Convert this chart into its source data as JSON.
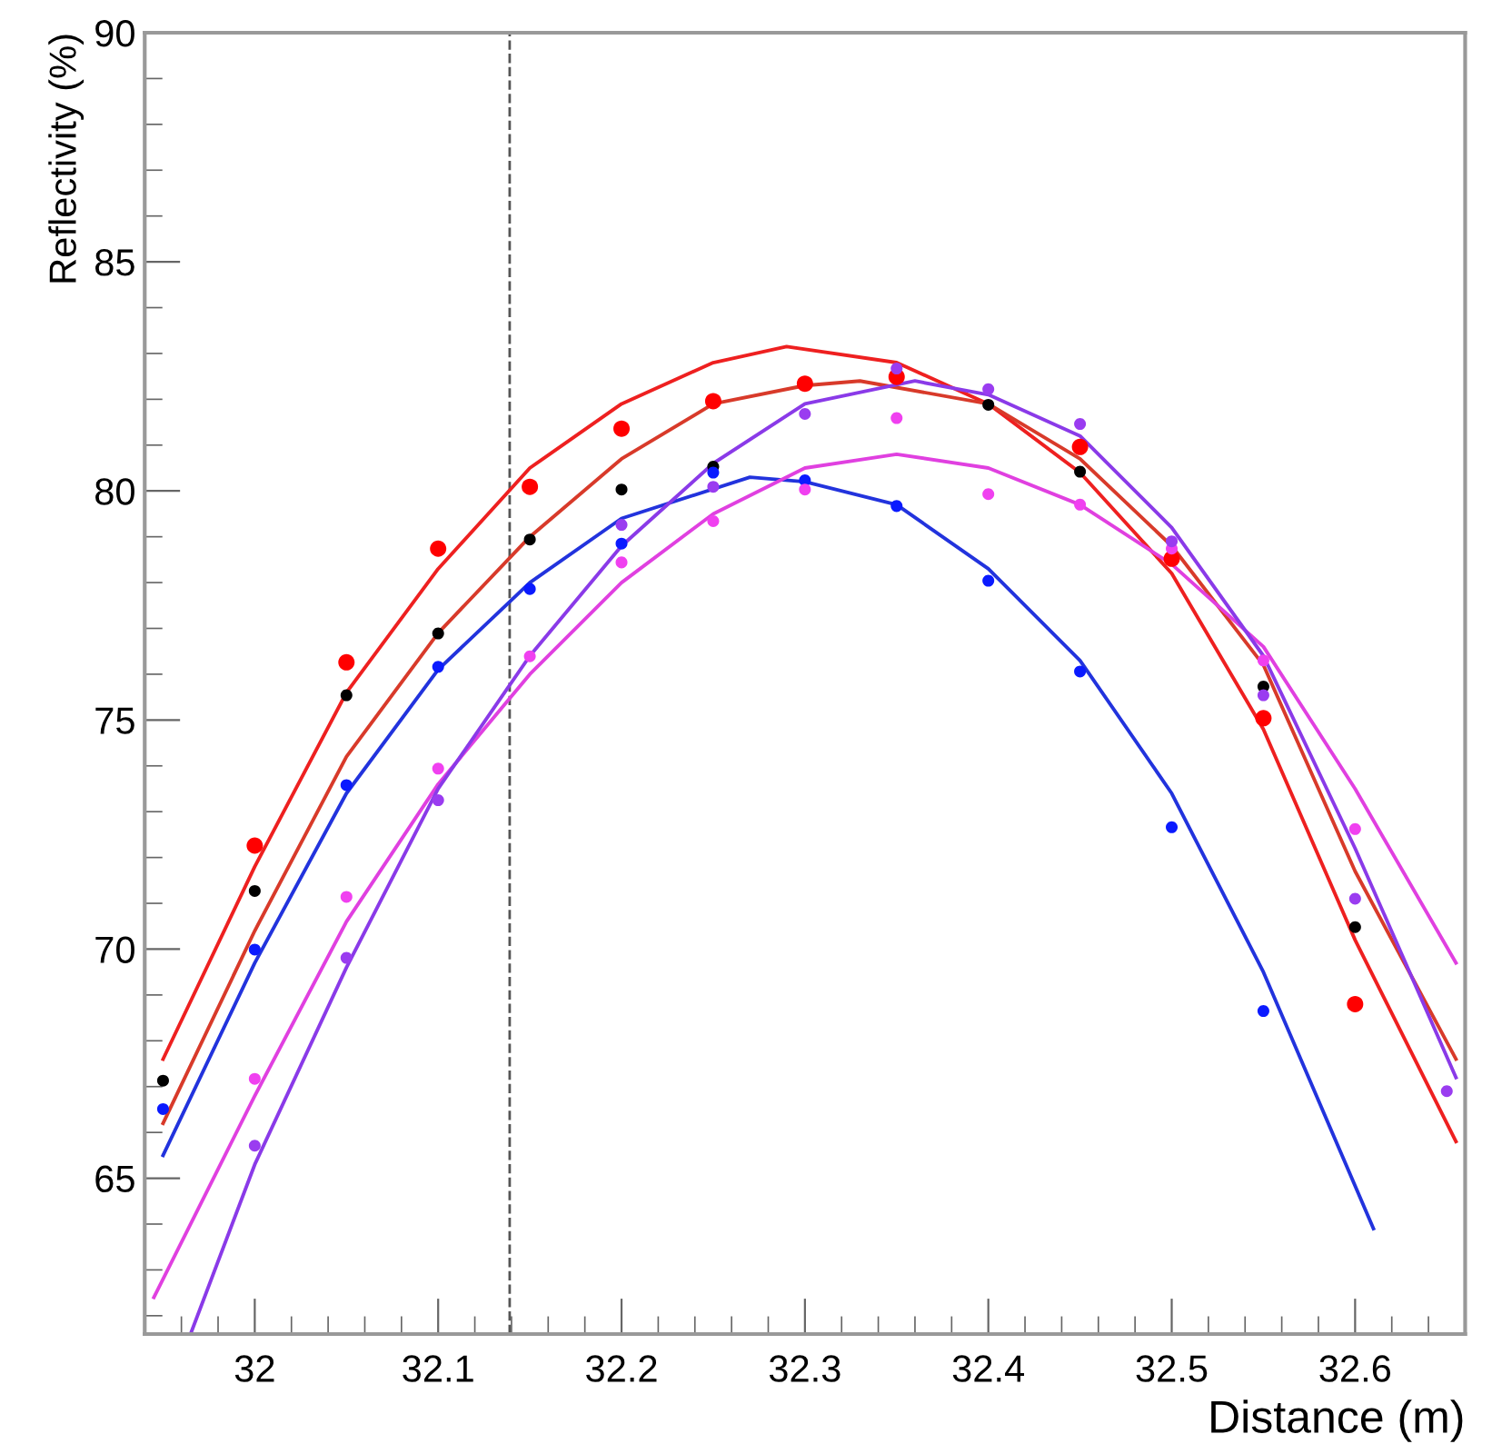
{
  "chart_data": {
    "type": "scatter",
    "xlabel": "Distance (m)",
    "ylabel": "Reflectivity (%)",
    "x": [
      31.95,
      32.0,
      32.05,
      32.1,
      32.15,
      32.2,
      32.25,
      32.3,
      32.35,
      32.4,
      32.45,
      32.5,
      32.55,
      32.6,
      32.65
    ],
    "series": [
      {
        "color": "#ff0000",
        "values": [
          null,
          72.26,
          76.26,
          78.74,
          80.09,
          81.36,
          81.96,
          82.34,
          82.49,
          null,
          80.96,
          78.52,
          75.04,
          68.8,
          null
        ]
      },
      {
        "color": "#000000",
        "values": [
          67.13,
          71.27,
          75.54,
          76.89,
          78.94,
          80.03,
          80.53,
          null,
          null,
          81.88,
          80.42,
          null,
          75.73,
          70.48,
          null
        ]
      },
      {
        "color": "#0a1aff",
        "values": [
          66.51,
          69.99,
          73.58,
          76.16,
          77.86,
          78.85,
          80.4,
          80.23,
          79.67,
          78.04,
          76.06,
          72.66,
          68.65,
          null,
          null
        ]
      },
      {
        "color": "#f040f0",
        "values": [
          null,
          67.17,
          71.14,
          73.94,
          76.39,
          78.44,
          79.34,
          80.03,
          81.59,
          79.93,
          79.7,
          78.74,
          76.3,
          72.62,
          null
        ]
      },
      {
        "color": "#9a3cf0",
        "values": [
          null,
          65.71,
          69.81,
          73.25,
          null,
          79.26,
          80.09,
          81.68,
          82.67,
          82.22,
          81.46,
          78.9,
          75.54,
          71.1,
          66.9
        ]
      },
      {
        "type": "line",
        "marker": "none",
        "color": "#ee2020",
        "x": [
          31.95,
          32.0,
          32.05,
          32.1,
          32.15,
          32.2,
          32.25,
          32.29,
          32.35,
          32.4,
          32.45,
          32.5,
          32.55,
          32.6,
          32.655
        ],
        "values": [
          67.6,
          71.8,
          75.6,
          78.3,
          80.5,
          81.9,
          82.8,
          83.15,
          82.8,
          81.9,
          80.4,
          78.2,
          74.8,
          70.2,
          65.8
        ]
      },
      {
        "type": "line",
        "marker": "none",
        "color": "#d83a2a",
        "x": [
          31.95,
          32.0,
          32.05,
          32.1,
          32.15,
          32.2,
          32.25,
          32.3,
          32.33,
          32.4,
          32.45,
          32.5,
          32.55,
          32.6,
          32.655
        ],
        "values": [
          66.2,
          70.4,
          74.2,
          76.9,
          79.0,
          80.7,
          81.9,
          82.3,
          82.4,
          81.9,
          80.7,
          78.8,
          76.2,
          71.7,
          67.6
        ]
      },
      {
        "type": "line",
        "marker": "none",
        "color": "#2233dd",
        "x": [
          31.95,
          32.0,
          32.05,
          32.1,
          32.15,
          32.2,
          32.27,
          32.3,
          32.35,
          32.4,
          32.45,
          32.5,
          32.55,
          32.61
        ],
        "values": [
          65.5,
          69.7,
          73.4,
          76.1,
          78.0,
          79.4,
          80.3,
          80.2,
          79.7,
          78.3,
          76.3,
          73.4,
          69.5,
          63.9
        ]
      },
      {
        "type": "line",
        "marker": "none",
        "color": "#e040e0",
        "x": [
          31.945,
          32.0,
          32.05,
          32.1,
          32.15,
          32.2,
          32.25,
          32.3,
          32.35,
          32.4,
          32.45,
          32.5,
          32.55,
          32.6,
          32.655
        ],
        "values": [
          62.4,
          66.8,
          70.6,
          73.6,
          76.0,
          78.0,
          79.5,
          80.5,
          80.8,
          80.5,
          79.7,
          78.4,
          76.6,
          73.5,
          69.7
        ]
      },
      {
        "type": "line",
        "marker": "none",
        "color": "#8a3ae8",
        "x": [
          31.965,
          32.0,
          32.05,
          32.1,
          32.15,
          32.2,
          32.25,
          32.3,
          32.36,
          32.4,
          32.45,
          32.5,
          32.55,
          32.6,
          32.655
        ],
        "values": [
          61.6,
          65.3,
          69.6,
          73.5,
          76.4,
          78.8,
          80.6,
          81.9,
          82.4,
          82.1,
          81.2,
          79.2,
          76.4,
          72.2,
          67.2
        ]
      }
    ],
    "marker": "circle",
    "grid": false,
    "legend": false,
    "xlim": [
      31.94,
      32.66
    ],
    "ylim": [
      61.6,
      90
    ],
    "xticks": [
      {
        "value": 31.94,
        "label": null
      },
      {
        "value": 31.96,
        "label": null
      },
      {
        "value": 31.98,
        "label": null
      },
      32,
      {
        "value": 32.02,
        "label": null
      },
      {
        "value": 32.04,
        "label": null
      },
      {
        "value": 32.06,
        "label": null
      },
      {
        "value": 32.08,
        "label": null
      },
      32.1,
      {
        "value": 32.12,
        "label": null
      },
      {
        "value": 32.14,
        "label": null
      },
      {
        "value": 32.16,
        "label": null
      },
      {
        "value": 32.18,
        "label": null
      },
      32.2,
      {
        "value": 32.22,
        "label": null
      },
      {
        "value": 32.24,
        "label": null
      },
      {
        "value": 32.26,
        "label": null
      },
      {
        "value": 32.28,
        "label": null
      },
      32.3,
      {
        "value": 32.32,
        "label": null
      },
      {
        "value": 32.34,
        "label": null
      },
      {
        "value": 32.36,
        "label": null
      },
      {
        "value": 32.38,
        "label": null
      },
      32.4,
      {
        "value": 32.42,
        "label": null
      },
      {
        "value": 32.44,
        "label": null
      },
      {
        "value": 32.46,
        "label": null
      },
      {
        "value": 32.48,
        "label": null
      },
      32.5,
      {
        "value": 32.52,
        "label": null
      },
      {
        "value": 32.54,
        "label": null
      },
      {
        "value": 32.56,
        "label": null
      },
      {
        "value": 32.58,
        "label": null
      },
      32.6,
      {
        "value": 32.62,
        "label": null
      },
      {
        "value": 32.64,
        "label": null
      }
    ],
    "yticks": [
      {
        "value": 62,
        "label": null
      },
      {
        "value": 63,
        "label": null
      },
      {
        "value": 64,
        "label": null
      },
      65,
      {
        "value": 66,
        "label": null
      },
      {
        "value": 67,
        "label": null
      },
      {
        "value": 68,
        "label": null
      },
      {
        "value": 69,
        "label": null
      },
      70,
      {
        "value": 71,
        "label": null
      },
      {
        "value": 72,
        "label": null
      },
      {
        "value": 73,
        "label": null
      },
      {
        "value": 74,
        "label": null
      },
      75,
      {
        "value": 76,
        "label": null
      },
      {
        "value": 77,
        "label": null
      },
      {
        "value": 78,
        "label": null
      },
      {
        "value": 79,
        "label": null
      },
      80,
      {
        "value": 81,
        "label": null
      },
      {
        "value": 82,
        "label": null
      },
      {
        "value": 83,
        "label": null
      },
      {
        "value": 84,
        "label": null
      },
      85,
      {
        "value": 86,
        "label": null
      },
      {
        "value": 87,
        "label": null
      },
      {
        "value": 88,
        "label": null
      },
      {
        "value": 89,
        "label": null
      },
      90
    ],
    "ref_lines": [
      {
        "axis": "x",
        "value": 32.139,
        "color": "#555555",
        "line_style": "dashed"
      }
    ]
  }
}
